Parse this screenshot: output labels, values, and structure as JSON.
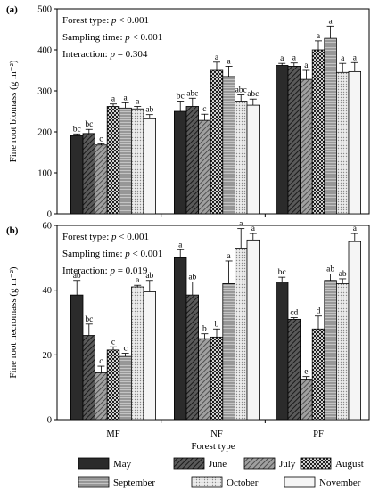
{
  "chart_data": [
    {
      "type": "bar",
      "panel_label": "(a)",
      "ylabel": "Fine root biomass (g m⁻²)",
      "ylim": [
        0,
        500
      ],
      "yticks": [
        "0",
        "100",
        "200",
        "300",
        "400",
        "500"
      ],
      "categories": [
        "MF",
        "NF",
        "PF"
      ],
      "stats": [
        {
          "prefix": "Forest type: ",
          "p": "p",
          "rest": " < 0.001"
        },
        {
          "prefix": "Sampling time: ",
          "p": "p",
          "rest": " < 0.001"
        },
        {
          "prefix": "Interaction: ",
          "p": "p",
          "rest": " = 0.304"
        }
      ],
      "series": [
        {
          "name": "May",
          "values": [
            191,
            250,
            362
          ],
          "errors": [
            4,
            25,
            5
          ],
          "labels": [
            "bc",
            "bc",
            "a"
          ]
        },
        {
          "name": "June",
          "values": [
            196,
            262,
            360
          ],
          "errors": [
            10,
            20,
            8
          ],
          "labels": [
            "bc",
            "abc",
            "a"
          ]
        },
        {
          "name": "July",
          "values": [
            168,
            228,
            328
          ],
          "errors": [
            3,
            15,
            22
          ],
          "labels": [
            "c",
            "c",
            "a"
          ]
        },
        {
          "name": "August",
          "values": [
            262,
            350,
            400
          ],
          "errors": [
            6,
            20,
            22
          ],
          "labels": [
            "a",
            "a",
            "a"
          ]
        },
        {
          "name": "September",
          "values": [
            258,
            335,
            428
          ],
          "errors": [
            13,
            25,
            30
          ],
          "labels": [
            "a",
            "a",
            "a"
          ]
        },
        {
          "name": "October",
          "values": [
            256,
            275,
            345
          ],
          "errors": [
            6,
            15,
            22
          ],
          "labels": [
            "a",
            "abc",
            "a"
          ]
        },
        {
          "name": "November",
          "values": [
            232,
            265,
            347
          ],
          "errors": [
            10,
            15,
            22
          ],
          "labels": [
            "ab",
            "abc",
            "a"
          ]
        }
      ]
    },
    {
      "type": "bar",
      "panel_label": "(b)",
      "ylabel": "Fine root necromass (g m⁻²)",
      "ylim": [
        0,
        60
      ],
      "yticks": [
        "0",
        "20",
        "40",
        "60"
      ],
      "categories": [
        "MF",
        "NF",
        "PF"
      ],
      "stats": [
        {
          "prefix": "Forest type: ",
          "p": "p",
          "rest": " < 0.001"
        },
        {
          "prefix": "Sampling time: ",
          "p": "p",
          "rest": " < 0.001"
        },
        {
          "prefix": "Interaction: ",
          "p": "p",
          "rest": " = 0.019"
        }
      ],
      "series": [
        {
          "name": "May",
          "values": [
            38.5,
            50,
            42.5
          ],
          "errors": [
            4.5,
            2.5,
            1.5
          ],
          "labels": [
            "ab",
            "a",
            "bc"
          ]
        },
        {
          "name": "June",
          "values": [
            26,
            38.5,
            31
          ],
          "errors": [
            3.5,
            4,
            0.5
          ],
          "labels": [
            "bc",
            "ab",
            "cd"
          ]
        },
        {
          "name": "July",
          "values": [
            14.5,
            25,
            12.5
          ],
          "errors": [
            2,
            1.5,
            0.8
          ],
          "labels": [
            "c",
            "b",
            "e"
          ]
        },
        {
          "name": "August",
          "values": [
            21.5,
            25.5,
            28
          ],
          "errors": [
            1,
            2.5,
            4
          ],
          "labels": [
            "c",
            "b",
            "d"
          ]
        },
        {
          "name": "September",
          "values": [
            19.5,
            42,
            43
          ],
          "errors": [
            1,
            7,
            2
          ],
          "labels": [
            "c",
            "a",
            "ab"
          ]
        },
        {
          "name": "October",
          "values": [
            41,
            53,
            42
          ],
          "errors": [
            0.5,
            6,
            1.5
          ],
          "labels": [
            "a",
            "a",
            "ab"
          ]
        },
        {
          "name": "November",
          "values": [
            39.5,
            55.5,
            55
          ],
          "errors": [
            3.5,
            2,
            2.5
          ],
          "labels": [
            "ab",
            "a",
            "a"
          ]
        }
      ]
    }
  ],
  "xlabel": "Forest type",
  "legend": [
    {
      "name": "May",
      "color": "#2a2a2a",
      "pattern": "solid-dark"
    },
    {
      "name": "June",
      "color": "#4a4a4a",
      "pattern": "diagonal-dark"
    },
    {
      "name": "July",
      "color": "#8a8a8a",
      "pattern": "diagonal-mid"
    },
    {
      "name": "August",
      "color": "#707070",
      "pattern": "checker"
    },
    {
      "name": "September",
      "color": "#a8a8a8",
      "pattern": "horizontal"
    },
    {
      "name": "October",
      "color": "#d8d8d8",
      "pattern": "dots"
    },
    {
      "name": "November",
      "color": "#f2f2f2",
      "pattern": "solid-light"
    }
  ]
}
